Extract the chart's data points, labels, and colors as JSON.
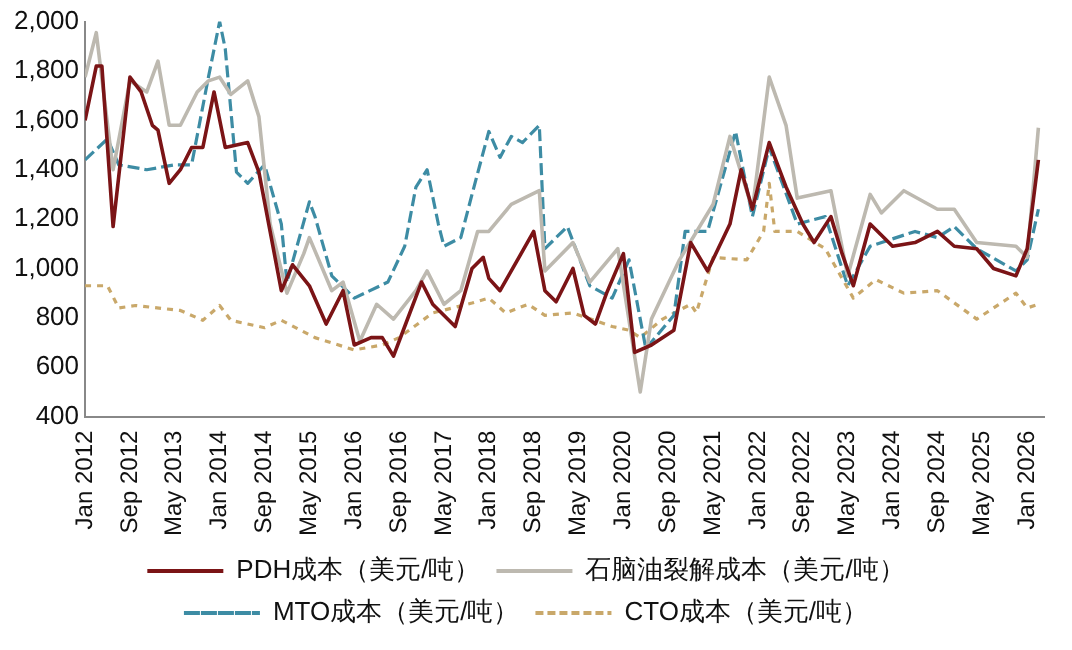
{
  "chart_data": {
    "type": "line",
    "legend": "bottom",
    "marker": "none",
    "xlim": [
      "2012-01",
      "2026-04"
    ],
    "xticks": [
      {
        "value": "2012-01",
        "label": "Jan 2012"
      },
      {
        "value": "2012-09",
        "label": "Sep 2012"
      },
      {
        "value": "2013-05",
        "label": "May 2013"
      },
      {
        "value": "2014-01",
        "label": "Jan 2014"
      },
      {
        "value": "2014-09",
        "label": "Sep 2014"
      },
      {
        "value": "2015-05",
        "label": "May 2015"
      },
      {
        "value": "2016-01",
        "label": "Jan 2016"
      },
      {
        "value": "2016-09",
        "label": "Sep 2016"
      },
      {
        "value": "2017-05",
        "label": "May 2017"
      },
      {
        "value": "2018-01",
        "label": "Jan 2018"
      },
      {
        "value": "2018-09",
        "label": "Sep 2018"
      },
      {
        "value": "2019-05",
        "label": "May 2019"
      },
      {
        "value": "2020-01",
        "label": "Jan 2020"
      },
      {
        "value": "2020-09",
        "label": "Sep 2020"
      },
      {
        "value": "2021-05",
        "label": "May 2021"
      },
      {
        "value": "2022-01",
        "label": "Jan 2022"
      },
      {
        "value": "2022-09",
        "label": "Sep 2022"
      },
      {
        "value": "2023-05",
        "label": "May 2023"
      },
      {
        "value": "2024-01",
        "label": "Jan 2024"
      },
      {
        "value": "2024-09",
        "label": "Sep 2024"
      },
      {
        "value": "2025-05",
        "label": "May 2025"
      },
      {
        "value": "2026-01",
        "label": "Jan 2026"
      }
    ],
    "ylim": [
      400,
      2000
    ],
    "yticks": [
      400,
      600,
      800,
      {
        "value": 1000,
        "label": "1,000"
      },
      {
        "value": 1200,
        "label": "1,200"
      },
      {
        "value": 1400,
        "label": "1,400"
      },
      {
        "value": 1600,
        "label": "1,600"
      },
      {
        "value": 1800,
        "label": "1,800"
      },
      {
        "value": 2000,
        "label": "2,000"
      }
    ],
    "series": [
      {
        "name": "PDH成本（美元/吨）",
        "color": "#7b1416",
        "line_style": "solid",
        "x": [
          "2012-01",
          "2012-03",
          "2012-04",
          "2012-06",
          "2012-09",
          "2012-11",
          "2013-01",
          "2013-02",
          "2013-04",
          "2013-06",
          "2013-08",
          "2013-10",
          "2013-12",
          "2014-02",
          "2014-06",
          "2014-08",
          "2014-10",
          "2014-12",
          "2015-02",
          "2015-05",
          "2015-08",
          "2015-11",
          "2016-01",
          "2016-04",
          "2016-06",
          "2016-08",
          "2016-10",
          "2017-01",
          "2017-03",
          "2017-07",
          "2017-10",
          "2017-12",
          "2018-01",
          "2018-03",
          "2018-09",
          "2018-11",
          "2019-01",
          "2019-04",
          "2019-06",
          "2019-08",
          "2019-10",
          "2020-01",
          "2020-03",
          "2020-06",
          "2020-10",
          "2021-01",
          "2021-04",
          "2021-08",
          "2021-10",
          "2021-12",
          "2022-03",
          "2022-06",
          "2022-09",
          "2022-11",
          "2023-02",
          "2023-04",
          "2023-06",
          "2023-09",
          "2024-01",
          "2024-05",
          "2024-09",
          "2024-12",
          "2025-04",
          "2025-07",
          "2025-11",
          "2026-01",
          "2026-03"
        ],
        "values": [
          1600,
          1820,
          1820,
          1170,
          1775,
          1715,
          1580,
          1560,
          1345,
          1400,
          1490,
          1490,
          1715,
          1490,
          1510,
          1390,
          1150,
          910,
          1015,
          930,
          775,
          910,
          690,
          720,
          720,
          645,
          765,
          945,
          855,
          765,
          1000,
          1045,
          960,
          910,
          1150,
          910,
          865,
          1000,
          810,
          775,
          900,
          1060,
          660,
          690,
          750,
          1105,
          990,
          1180,
          1400,
          1240,
          1510,
          1330,
          1180,
          1105,
          1210,
          1060,
          930,
          1180,
          1090,
          1105,
          1150,
          1090,
          1080,
          1000,
          970,
          1080,
          1440
        ]
      },
      {
        "name": "石脑油裂解成本（美元/吨）",
        "color": "#bdb9b0",
        "line_style": "solid",
        "x": [
          "2012-01",
          "2012-03",
          "2012-06",
          "2012-09",
          "2012-12",
          "2013-02",
          "2013-04",
          "2013-06",
          "2013-09",
          "2013-11",
          "2014-01",
          "2014-03",
          "2014-06",
          "2014-08",
          "2014-10",
          "2015-01",
          "2015-04",
          "2015-05",
          "2015-09",
          "2015-11",
          "2016-02",
          "2016-05",
          "2016-08",
          "2016-12",
          "2017-02",
          "2017-05",
          "2017-08",
          "2017-11",
          "2018-01",
          "2018-05",
          "2018-10",
          "2018-11",
          "2019-04",
          "2019-07",
          "2019-12",
          "2020-04",
          "2020-06",
          "2020-11",
          "2021-05",
          "2021-08",
          "2021-12",
          "2022-03",
          "2022-06",
          "2022-08",
          "2023-02",
          "2023-05",
          "2023-09",
          "2023-11",
          "2024-03",
          "2024-09",
          "2024-12",
          "2025-04",
          "2025-11",
          "2026-01",
          "2026-03"
        ],
        "values": [
          1775,
          1955,
          1400,
          1760,
          1715,
          1840,
          1580,
          1580,
          1715,
          1760,
          1775,
          1705,
          1760,
          1615,
          1180,
          900,
          1060,
          1125,
          910,
          945,
          705,
          855,
          795,
          910,
          990,
          855,
          910,
          1150,
          1150,
          1260,
          1315,
          990,
          1105,
          945,
          1080,
          500,
          795,
          1035,
          1260,
          1535,
          1240,
          1775,
          1580,
          1285,
          1315,
          970,
          1300,
          1225,
          1315,
          1240,
          1240,
          1105,
          1090,
          1045,
          1570
        ]
      },
      {
        "name": "MTO成本（美元/吨）",
        "color": "#3d8ca4",
        "line_style": "dashed",
        "x": [
          "2012-01",
          "2012-05",
          "2012-07",
          "2012-12",
          "2013-05",
          "2013-08",
          "2013-11",
          "2014-01",
          "2014-02",
          "2014-04",
          "2014-06",
          "2014-09",
          "2014-12",
          "2015-01",
          "2015-05",
          "2015-06",
          "2015-09",
          "2016-01",
          "2016-07",
          "2016-10",
          "2016-12",
          "2017-02",
          "2017-04",
          "2017-05",
          "2017-08",
          "2017-10",
          "2018-01",
          "2018-03",
          "2018-05",
          "2018-07",
          "2018-10",
          "2018-11",
          "2019-03",
          "2019-07",
          "2019-11",
          "2020-02",
          "2020-05",
          "2020-10",
          "2020-12",
          "2021-04",
          "2021-09",
          "2021-12",
          "2022-03",
          "2022-08",
          "2023-01",
          "2023-05",
          "2023-09",
          "2024-05",
          "2024-09",
          "2024-12",
          "2025-04",
          "2025-11",
          "2026-01",
          "2026-03"
        ],
        "values": [
          1440,
          1525,
          1420,
          1400,
          1420,
          1420,
          1775,
          2000,
          1890,
          1390,
          1345,
          1420,
          1180,
          945,
          1270,
          1210,
          970,
          880,
          945,
          1090,
          1330,
          1400,
          1180,
          1090,
          1125,
          1300,
          1555,
          1450,
          1535,
          1510,
          1580,
          1080,
          1170,
          930,
          880,
          1035,
          675,
          810,
          1150,
          1150,
          1555,
          1210,
          1490,
          1180,
          1210,
          930,
          1090,
          1150,
          1125,
          1170,
          1080,
          990,
          1035,
          1240
        ]
      },
      {
        "name": "CTO成本（美元/吨）",
        "color": "#c9a86a",
        "line_style": "dotted",
        "x": [
          "2012-01",
          "2012-05",
          "2012-07",
          "2012-10",
          "2013-06",
          "2013-10",
          "2014-01",
          "2014-03",
          "2014-09",
          "2014-12",
          "2015-06",
          "2016-01",
          "2016-06",
          "2016-09",
          "2017-03",
          "2017-10",
          "2018-01",
          "2018-04",
          "2018-08",
          "2018-11",
          "2019-04",
          "2019-11",
          "2020-02",
          "2020-04",
          "2020-08",
          "2021-01",
          "2021-02",
          "2021-05",
          "2021-11",
          "2022-02",
          "2022-03",
          "2022-04",
          "2022-08",
          "2023-01",
          "2023-06",
          "2023-10",
          "2024-03",
          "2024-09",
          "2025-04",
          "2025-11",
          "2026-01",
          "2026-03"
        ],
        "values": [
          930,
          930,
          840,
          850,
          830,
          790,
          850,
          790,
          760,
          790,
          720,
          670,
          690,
          720,
          820,
          860,
          880,
          820,
          855,
          810,
          820,
          765,
          750,
          720,
          795,
          855,
          820,
          1045,
          1035,
          1150,
          1345,
          1150,
          1150,
          1080,
          880,
          955,
          900,
          910,
          795,
          900,
          840,
          855
        ]
      }
    ]
  }
}
